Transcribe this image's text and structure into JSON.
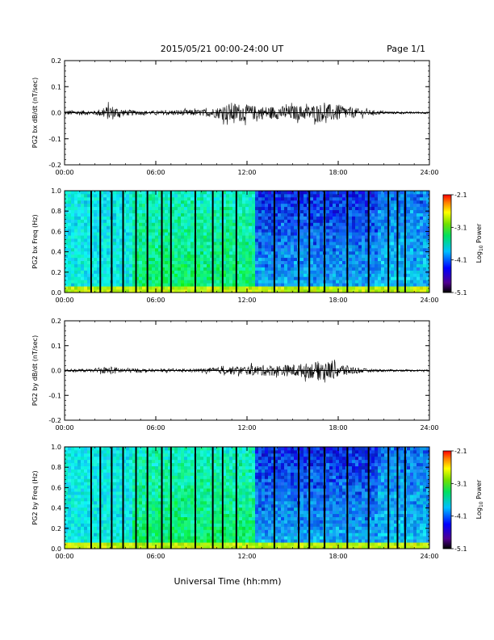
{
  "header": {
    "title": "2015/05/21  00:00-24:00 UT",
    "page": "Page 1/1"
  },
  "footer": {
    "xlabel": "Universal Time (hh:mm)"
  },
  "colorbar": {
    "label_prefix": "Log",
    "label_sub": "10",
    "label_suffix": " Power",
    "ticks": [
      "-2.1",
      "-3.1",
      "-4.1",
      "-5.1"
    ],
    "range": [
      -5.1,
      -2.1
    ]
  },
  "colors": {
    "spectrogram_background": "#18c8c0",
    "trace": "#000000"
  },
  "chart_data": [
    {
      "type": "line",
      "ylabel": "PG2 bx dB/dt (nT/sec)",
      "xlim": [
        0,
        24
      ],
      "ylim": [
        -0.2,
        0.2
      ],
      "xtick_labels": [
        "00:00",
        "06:00",
        "12:00",
        "18:00",
        "24:00"
      ],
      "ytick_labels": [
        "0.2",
        "0.1",
        "0.0",
        "-0.1",
        "-0.2"
      ],
      "series": [
        {
          "x": [
            0,
            1,
            2,
            3,
            4,
            5,
            6,
            7,
            8,
            9,
            10,
            11,
            12,
            13,
            14,
            15,
            16,
            17,
            18,
            19,
            20,
            21,
            22,
            23,
            24
          ],
          "values": [
            0.01,
            0.01,
            0.008,
            0.03,
            0.012,
            0.008,
            0.008,
            0.01,
            0.012,
            0.012,
            0.02,
            0.04,
            0.03,
            0.025,
            0.025,
            0.028,
            0.028,
            0.035,
            0.03,
            0.02,
            0.01,
            0.006,
            0.005,
            0.004,
            0.004
          ]
        }
      ]
    },
    {
      "type": "heatmap",
      "ylabel": "PG2 bx Freq (Hz)",
      "xlim": [
        0,
        24
      ],
      "ylim": [
        0,
        1
      ],
      "xtick_labels": [
        "00:00",
        "06:00",
        "12:00",
        "18:00",
        "24:00"
      ],
      "ytick_labels": [
        "1.0",
        "0.8",
        "0.6",
        "0.4",
        "0.2",
        "0.0"
      ],
      "gap_times": [
        1.75,
        2.35,
        3.1,
        3.85,
        4.7,
        5.45,
        6.4,
        7.0,
        8.6,
        9.75,
        10.4,
        11.3,
        13.8,
        15.4,
        16.1,
        17.1,
        18.6,
        20.0,
        21.3,
        21.9,
        22.4
      ]
    },
    {
      "type": "line",
      "ylabel": "PG2 by dB/dt (nT/sec)",
      "xlim": [
        0,
        24
      ],
      "ylim": [
        -0.2,
        0.2
      ],
      "xtick_labels": [
        "00:00",
        "06:00",
        "12:00",
        "18:00",
        "24:00"
      ],
      "ytick_labels": [
        "0.2",
        "0.1",
        "0.0",
        "-0.1",
        "-0.2"
      ],
      "series": [
        {
          "x": [
            0,
            1,
            2,
            3,
            4,
            5,
            6,
            7,
            8,
            9,
            10,
            11,
            12,
            13,
            14,
            15,
            16,
            17,
            18,
            19,
            20,
            21,
            22,
            23,
            24
          ],
          "values": [
            0.006,
            0.006,
            0.006,
            0.016,
            0.01,
            0.008,
            0.006,
            0.006,
            0.006,
            0.008,
            0.012,
            0.016,
            0.018,
            0.022,
            0.022,
            0.024,
            0.03,
            0.04,
            0.03,
            0.015,
            0.006,
            0.005,
            0.004,
            0.004,
            0.004
          ]
        }
      ]
    },
    {
      "type": "heatmap",
      "ylabel": "PG2 by Freq (Hz)",
      "xlim": [
        0,
        24
      ],
      "ylim": [
        0,
        1
      ],
      "xtick_labels": [
        "00:00",
        "06:00",
        "12:00",
        "18:00",
        "24:00"
      ],
      "ytick_labels": [
        "1.0",
        "0.8",
        "0.6",
        "0.4",
        "0.2",
        "0.0"
      ],
      "gap_times": [
        1.75,
        2.35,
        3.1,
        3.85,
        4.7,
        5.45,
        6.4,
        7.0,
        8.6,
        9.75,
        10.4,
        11.3,
        13.8,
        15.4,
        16.1,
        17.1,
        18.6,
        20.0,
        21.3,
        21.9,
        22.4
      ]
    }
  ]
}
